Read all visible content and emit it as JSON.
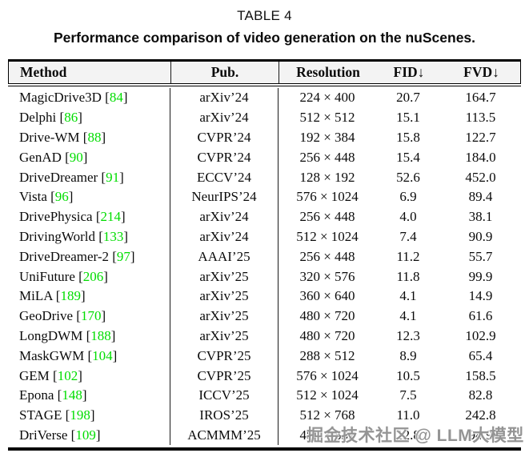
{
  "title": "TABLE 4",
  "subtitle": "Performance comparison of video generation on the nuScenes.",
  "colors": {
    "citation_green": "#00dd00",
    "header_bg": "#f3f3f3",
    "rule_black": "#000000"
  },
  "table": {
    "columns": [
      {
        "key": "method",
        "label": "Method"
      },
      {
        "key": "pub",
        "label": "Pub."
      },
      {
        "key": "resolution",
        "label": "Resolution"
      },
      {
        "key": "fid",
        "label": "FID↓"
      },
      {
        "key": "fvd",
        "label": "FVD↓"
      }
    ],
    "rows": [
      {
        "method": "MagicDrive3D",
        "cite": "84",
        "pub": "arXiv’24",
        "resolution": "224 × 400",
        "fid": "20.7",
        "fvd": "164.7"
      },
      {
        "method": "Delphi",
        "cite": "86",
        "pub": "arXiv’24",
        "resolution": "512 × 512",
        "fid": "15.1",
        "fvd": "113.5"
      },
      {
        "method": "Drive-WM",
        "cite": "88",
        "pub": "CVPR’24",
        "resolution": "192 × 384",
        "fid": "15.8",
        "fvd": "122.7"
      },
      {
        "method": "GenAD",
        "cite": "90",
        "pub": "CVPR’24",
        "resolution": "256 × 448",
        "fid": "15.4",
        "fvd": "184.0"
      },
      {
        "method": "DriveDreamer",
        "cite": "91",
        "pub": "ECCV’24",
        "resolution": "128 × 192",
        "fid": "52.6",
        "fvd": "452.0"
      },
      {
        "method": "Vista",
        "cite": "96",
        "pub": "NeurIPS’24",
        "resolution": "576 × 1024",
        "fid": "6.9",
        "fvd": "89.4"
      },
      {
        "method": "DrivePhysica",
        "cite": "214",
        "pub": "arXiv’24",
        "resolution": "256 × 448",
        "fid": "4.0",
        "fvd": "38.1"
      },
      {
        "method": "DrivingWorld",
        "cite": "133",
        "pub": "arXiv’24",
        "resolution": "512 × 1024",
        "fid": "7.4",
        "fvd": "90.9"
      },
      {
        "method": "DriveDreamer-2",
        "cite": "97",
        "pub": "AAAI’25",
        "resolution": "256 × 448",
        "fid": "11.2",
        "fvd": "55.7"
      },
      {
        "method": "UniFuture",
        "cite": "206",
        "pub": "arXiv’25",
        "resolution": "320 × 576",
        "fid": "11.8",
        "fvd": "99.9"
      },
      {
        "method": "MiLA",
        "cite": "189",
        "pub": "arXiv’25",
        "resolution": "360 × 640",
        "fid": "4.1",
        "fvd": "14.9"
      },
      {
        "method": "GeoDrive",
        "cite": "170",
        "pub": "arXiv’25",
        "resolution": "480 × 720",
        "fid": "4.1",
        "fvd": "61.6"
      },
      {
        "method": "LongDWM",
        "cite": "188",
        "pub": "arXiv’25",
        "resolution": "480 × 720",
        "fid": "12.3",
        "fvd": "102.9"
      },
      {
        "method": "MaskGWM",
        "cite": "104",
        "pub": "CVPR’25",
        "resolution": "288 × 512",
        "fid": "8.9",
        "fvd": "65.4"
      },
      {
        "method": "GEM",
        "cite": "102",
        "pub": "CVPR’25",
        "resolution": "576 × 1024",
        "fid": "10.5",
        "fvd": "158.5"
      },
      {
        "method": "Epona",
        "cite": "148",
        "pub": "ICCV’25",
        "resolution": "512 × 1024",
        "fid": "7.5",
        "fvd": "82.8"
      },
      {
        "method": "STAGE",
        "cite": "198",
        "pub": "IROS’25",
        "resolution": "512 × 768",
        "fid": "11.0",
        "fvd": "242.8"
      },
      {
        "method": "DriVerse",
        "cite": "109",
        "pub": "ACMMM’25",
        "resolution": "480 × 832",
        "fid": "12.8",
        "fvd": "94.9",
        "obscured_by_watermark": true
      }
    ]
  },
  "watermark": {
    "text": "掘金技术社区 @ LLM大模型"
  }
}
